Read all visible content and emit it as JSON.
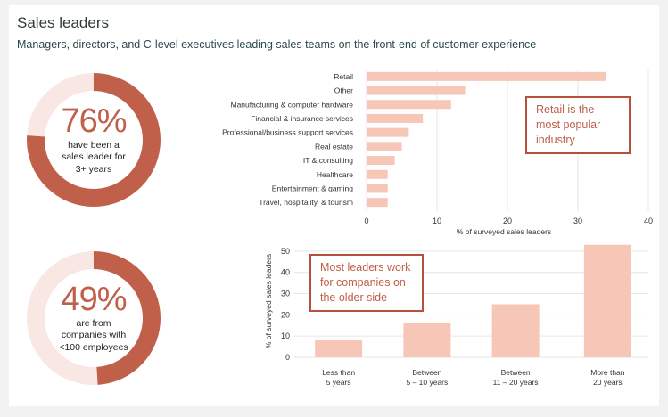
{
  "title": "Sales leaders",
  "subtitle": "Managers, directors, and C-level executives leading sales teams on the front-end of customer experience",
  "colors": {
    "accent": "#c0604a",
    "donut_track": "#f8e7e3",
    "bar": "#f6c7b7",
    "callout_border": "#b5503c"
  },
  "stats": [
    {
      "value": "76%",
      "label": "have been a sales leader for 3+ years",
      "fraction": 0.76
    },
    {
      "value": "49%",
      "label": "are from companies with <100 employees",
      "fraction": 0.49
    }
  ],
  "callouts": {
    "industry": "Retail is the most popular industry",
    "size": "Most leaders work for companies on the older side"
  },
  "chart_data": [
    {
      "type": "bar",
      "orientation": "horizontal",
      "categories": [
        "Retail",
        "Other",
        "Manufacturing & computer hardware",
        "Financial & insurance services",
        "Professional/business support services",
        "Real estate",
        "IT & consulting",
        "Healthcare",
        "Entertainment & gaming",
        "Travel, hospitality, & tourism"
      ],
      "values": [
        34,
        14,
        12,
        8,
        6,
        5,
        4,
        3,
        3,
        3
      ],
      "xlabel": "% of surveyed sales leaders",
      "xlim": [
        0,
        40
      ],
      "xticks": [
        0,
        10,
        20,
        30,
        40
      ],
      "grid": true
    },
    {
      "type": "bar",
      "orientation": "vertical",
      "categories": [
        "Less than 5 years",
        "Between 5 – 10 years",
        "Between 11 – 20 years",
        "More than 20 years"
      ],
      "category_lines": [
        [
          "Less than",
          "5 years"
        ],
        [
          "Between",
          "5 – 10 years"
        ],
        [
          "Between",
          "11 – 20 years"
        ],
        [
          "More than",
          "20 years"
        ]
      ],
      "values": [
        8,
        16,
        25,
        53
      ],
      "ylabel": "% of surveyed sales leaders",
      "ylim": [
        0,
        55
      ],
      "yticks": [
        0,
        10,
        20,
        30,
        40,
        50
      ],
      "grid": true
    }
  ]
}
